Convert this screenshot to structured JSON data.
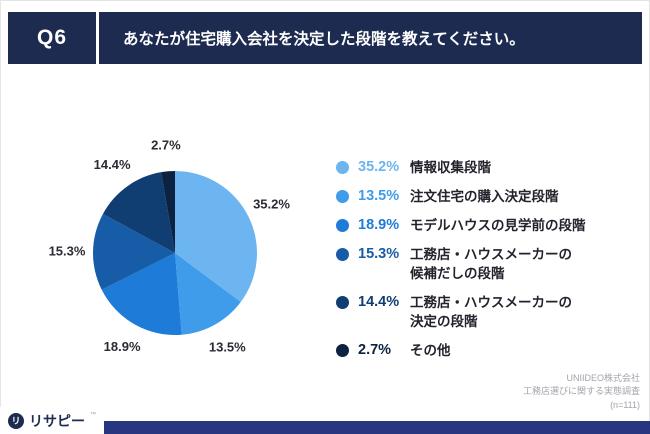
{
  "header": {
    "question_no": "Q6",
    "title": "あなたが住宅購入会社を決定した段階を教えてください。"
  },
  "chart_data": {
    "type": "pie",
    "start_angle_deg": 0,
    "direction": "clockwise",
    "slices": [
      {
        "label": "情報収集段階",
        "value": 35.2,
        "display": "35.2%",
        "color": "#6CB5F0"
      },
      {
        "label": "注文住宅の購入決定段階",
        "value": 13.5,
        "display": "13.5%",
        "color": "#3F9CEA"
      },
      {
        "label": "モデルハウスの見学前の段階",
        "value": 18.9,
        "display": "18.9%",
        "color": "#1E7CD8"
      },
      {
        "label": "工務店・ハウスメーカーの\n候補だしの段階",
        "value": 15.3,
        "display": "15.3%",
        "color": "#175CA6"
      },
      {
        "label": "工務店・ハウスメーカーの\n決定の段階",
        "value": 14.4,
        "display": "14.4%",
        "color": "#103D72"
      },
      {
        "label": "その他",
        "value": 2.7,
        "display": "2.7%",
        "color": "#0B2240"
      }
    ],
    "legend_position": "right",
    "value_labels": "outside"
  },
  "footer": {
    "logo_text": "リサピー",
    "logo_tm": "™",
    "logo_icon_glyph": "リ",
    "attribution": [
      "UNIIDEO株式会社",
      "工務店選びに関する実態調査",
      "(n=111)"
    ]
  },
  "colors": {
    "header_bg": "#1d2b50",
    "bottom_strip": "#27367e",
    "label_text": "#2b2b33"
  }
}
